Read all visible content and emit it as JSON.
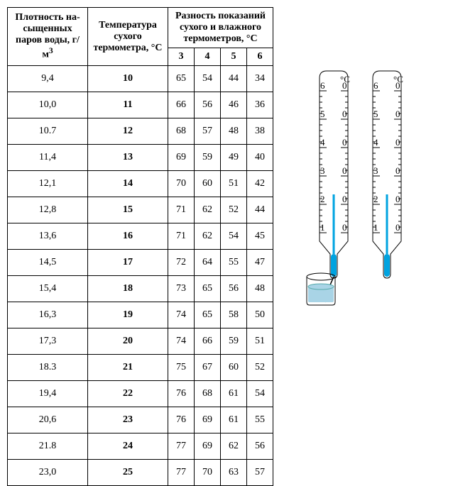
{
  "table": {
    "header": {
      "col0": "Плотность на­сыщенных паров воды, г/м",
      "col0_sup": "3",
      "col1": "Температу­ра сухого термометра, °С",
      "col_top": "Разность показаний су­хого и влажного термо­метров, °С",
      "subs": [
        "3",
        "4",
        "5",
        "6"
      ]
    },
    "rows": [
      [
        "9,4",
        "10",
        "65",
        "54",
        "44",
        "34"
      ],
      [
        "10,0",
        "11",
        "66",
        "56",
        "46",
        "36"
      ],
      [
        "10.7",
        "12",
        "68",
        "57",
        "48",
        "38"
      ],
      [
        "11,4",
        "13",
        "69",
        "59",
        "49",
        "40"
      ],
      [
        "12,1",
        "14",
        "70",
        "60",
        "51",
        "42"
      ],
      [
        "12,8",
        "15",
        "71",
        "62",
        "52",
        "44"
      ],
      [
        "13,6",
        "16",
        "71",
        "62",
        "54",
        "45"
      ],
      [
        "14,5",
        "17",
        "72",
        "64",
        "55",
        "47"
      ],
      [
        "15,4",
        "18",
        "73",
        "65",
        "56",
        "48"
      ],
      [
        "16,3",
        "19",
        "74",
        "65",
        "58",
        "50"
      ],
      [
        "17,3",
        "20",
        "74",
        "66",
        "59",
        "51"
      ],
      [
        "18.3",
        "21",
        "75",
        "67",
        "60",
        "52"
      ],
      [
        "19,4",
        "22",
        "76",
        "68",
        "61",
        "54"
      ],
      [
        "20,6",
        "23",
        "76",
        "69",
        "61",
        "55"
      ],
      [
        "21.8",
        "24",
        "77",
        "69",
        "62",
        "56"
      ],
      [
        "23,0",
        "25",
        "77",
        "70",
        "63",
        "57"
      ]
    ]
  },
  "thermo": {
    "unit": "°С",
    "scale_labels": [
      "6",
      "5",
      "4",
      "3",
      "2",
      "1"
    ],
    "scale_suffix": "0",
    "colors": {
      "fluid": "#00a3e0",
      "water": "#a9d4e6",
      "outline": "#000000",
      "tick": "#000000",
      "bg": "#ffffff"
    },
    "left_level_idx": 4,
    "right_level_idx": 4,
    "tick_len_major": 10,
    "tick_len_minor": 4
  }
}
